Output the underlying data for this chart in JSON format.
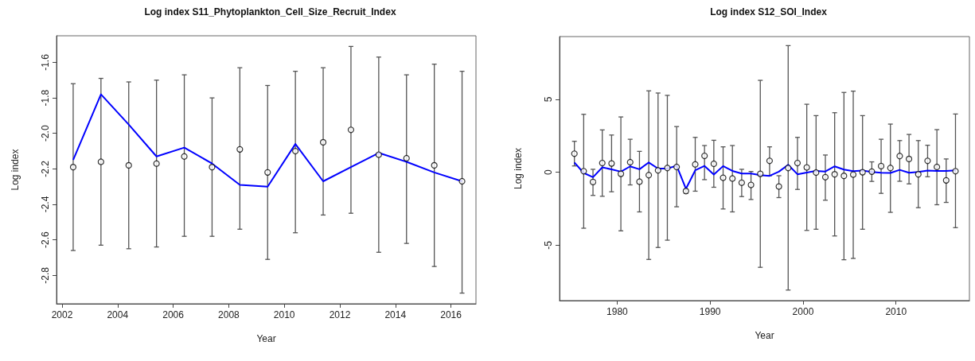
{
  "chart_data": [
    {
      "type": "scatter",
      "title": "Log index S11_Phytoplankton_Cell_Size_Recruit_Index",
      "xlabel": "Year",
      "ylabel": "Log index",
      "xlim": [
        2001.8,
        2016.9
      ],
      "ylim": [
        -2.96,
        -1.45
      ],
      "xticks": [
        2002,
        2004,
        2006,
        2008,
        2010,
        2012,
        2014,
        2016
      ],
      "yticks": [
        {
          "value": -2.8,
          "label": "-2.8"
        },
        {
          "value": -2.6,
          "label": "-2.6"
        },
        {
          "value": -2.4,
          "label": "-2.4"
        },
        {
          "value": -2.2,
          "label": "-2.2"
        },
        {
          "value": -2,
          "label": "-2.0"
        },
        {
          "value": -1.8,
          "label": "-1.8"
        },
        {
          "value": -1.6,
          "label": "-1.6"
        }
      ],
      "series": [
        {
          "type": "scatter",
          "marker": "circle",
          "color": "#000000",
          "x": [
            2002.4,
            2003.4,
            2004.4,
            2005.4,
            2006.4,
            2007.4,
            2008.4,
            2009.4,
            2010.4,
            2011.4,
            2012.4,
            2013.4,
            2014.4,
            2015.4,
            2016.4
          ],
          "values": [
            -2.19,
            -2.16,
            -2.18,
            -2.17,
            -2.13,
            -2.19,
            -2.09,
            -2.22,
            -2.1,
            -2.05,
            -1.98,
            -2.12,
            -2.14,
            -2.18,
            -2.27
          ],
          "errors": [
            [
              -2.66,
              -1.72
            ],
            [
              -2.63,
              -1.69
            ],
            [
              -2.65,
              -1.71
            ],
            [
              -2.64,
              -1.7
            ],
            [
              -2.58,
              -1.67
            ],
            [
              -2.58,
              -1.8
            ],
            [
              -2.54,
              -1.63
            ],
            [
              -2.71,
              -1.73
            ],
            [
              -2.56,
              -1.65
            ],
            [
              -2.46,
              -1.63
            ],
            [
              -2.45,
              -1.51
            ],
            [
              -2.67,
              -1.57
            ],
            [
              -2.62,
              -1.67
            ],
            [
              -2.75,
              -1.61
            ],
            [
              -2.9,
              -1.65
            ]
          ]
        },
        {
          "type": "line",
          "marker": "none",
          "color": "#0000ff",
          "x": [
            2002.4,
            2003.4,
            2004.4,
            2005.4,
            2006.4,
            2007.4,
            2008.4,
            2009.4,
            2010.4,
            2011.4,
            2012.4,
            2013.4,
            2014.4,
            2015.4,
            2016.4
          ],
          "values": [
            -2.15,
            -1.78,
            -1.95,
            -2.13,
            -2.08,
            -2.17,
            -2.29,
            -2.3,
            -2.06,
            -2.27,
            -2.19,
            -2.11,
            -2.16,
            -2.22,
            -2.27
          ]
        }
      ]
    },
    {
      "type": "scatter",
      "title": "Log index S12_SOI_Index",
      "xlabel": "Year",
      "ylabel": "Log index",
      "xlim": [
        1973.8,
        2017.9
      ],
      "ylim": [
        -8.8,
        9.3
      ],
      "xticks": [
        1980,
        1990,
        2000,
        2010
      ],
      "yticks": [
        -5,
        0,
        5
      ],
      "series": [
        {
          "type": "scatter",
          "marker": "circle",
          "color": "#000000",
          "x": [
            1975.4,
            1976.4,
            1977.4,
            1978.4,
            1979.4,
            1980.4,
            1981.4,
            1982.4,
            1983.4,
            1984.4,
            1985.4,
            1986.4,
            1987.4,
            1988.4,
            1989.4,
            1990.4,
            1991.4,
            1992.4,
            1993.4,
            1994.4,
            1995.4,
            1996.4,
            1997.4,
            1998.4,
            1999.4,
            2000.4,
            2001.4,
            2002.4,
            2003.4,
            2004.4,
            2005.4,
            2006.4,
            2007.4,
            2008.4,
            2009.4,
            2010.4,
            2011.4,
            2012.4,
            2013.4,
            2014.4,
            2015.4,
            2016.4
          ],
          "values": [
            1.27,
            0.07,
            -0.67,
            0.63,
            0.6,
            -0.11,
            0.69,
            -0.65,
            -0.2,
            0.13,
            0.29,
            0.36,
            -1.29,
            0.54,
            1.12,
            0.58,
            -0.38,
            -0.43,
            -0.72,
            -0.87,
            -0.11,
            0.78,
            -0.98,
            0.29,
            0.63,
            0.33,
            -0.02,
            -0.34,
            -0.14,
            -0.25,
            -0.16,
            0,
            0.04,
            0.42,
            0.29,
            1.11,
            0.91,
            -0.14,
            0.78,
            0.36,
            -0.56,
            0.07
          ],
          "errors": [
            [
              0.43,
              2.12
            ],
            [
              -3.84,
              3.97
            ],
            [
              -1.59,
              0.2
            ],
            [
              -1.65,
              2.9
            ],
            [
              -1.34,
              2.55
            ],
            [
              -4.02,
              3.79
            ],
            [
              -0.87,
              2.26
            ],
            [
              -2.72,
              1.43
            ],
            [
              -5.98,
              5.58
            ],
            [
              -5.16,
              5.43
            ],
            [
              -4.66,
              5.27
            ],
            [
              -2.37,
              3.13
            ],
            [
              -1.45,
              -1.16
            ],
            [
              -1.3,
              2.39
            ],
            [
              -0.51,
              1.83
            ],
            [
              -1.03,
              2.19
            ],
            [
              -2.52,
              1.74
            ],
            [
              -2.72,
              1.83
            ],
            [
              -1.67,
              0.2
            ],
            [
              -1.87,
              0.05
            ],
            [
              -6.52,
              6.3
            ],
            [
              -0.24,
              1.74
            ],
            [
              -1.74,
              -0.24
            ],
            [
              -8.08,
              8.68
            ],
            [
              -1.18,
              2.39
            ],
            [
              -3.99,
              4.66
            ],
            [
              -3.91,
              3.88
            ],
            [
              -1.92,
              1.18
            ],
            [
              -4.37,
              4.08
            ],
            [
              -6,
              5.47
            ],
            [
              -5.91,
              5.56
            ],
            [
              -3.91,
              3.88
            ],
            [
              -0.63,
              0.71
            ],
            [
              -1.45,
              2.26
            ],
            [
              -2.75,
              3.3
            ],
            [
              -0.62,
              2.17
            ],
            [
              -0.8,
              2.59
            ],
            [
              -2.43,
              2.17
            ],
            [
              -0.31,
              1.85
            ],
            [
              -2.23,
              2.92
            ],
            [
              -2.07,
              0.91
            ],
            [
              -3.8,
              3.99
            ]
          ]
        },
        {
          "type": "line",
          "marker": "none",
          "color": "#0000ff",
          "x": [
            1975.4,
            1976.4,
            1977.4,
            1978.4,
            1979.4,
            1980.4,
            1981.4,
            1982.4,
            1983.4,
            1984.4,
            1985.4,
            1986.4,
            1987.4,
            1988.4,
            1989.4,
            1990.4,
            1991.4,
            1992.4,
            1993.4,
            1994.4,
            1995.4,
            1996.4,
            1997.4,
            1998.4,
            1999.4,
            2000.4,
            2001.4,
            2002.4,
            2003.4,
            2004.4,
            2005.4,
            2006.4,
            2007.4,
            2008.4,
            2009.4,
            2010.4,
            2011.4,
            2012.4,
            2013.4,
            2014.4,
            2015.4,
            2016.4
          ],
          "values": [
            0.67,
            -0.05,
            -0.34,
            0.33,
            0.2,
            0.04,
            0.4,
            0.2,
            0.67,
            0.25,
            0.25,
            0.45,
            -1.14,
            0.13,
            0.43,
            -0.16,
            0.42,
            0.09,
            -0.09,
            -0.09,
            -0.2,
            -0.25,
            0.04,
            0.51,
            -0.14,
            -0.02,
            0.09,
            0.05,
            0.4,
            0.18,
            0.07,
            0.11,
            0.02,
            -0.04,
            -0.05,
            0.16,
            -0.04,
            0.02,
            0.11,
            0.09,
            0.09,
            0.13
          ]
        }
      ]
    }
  ]
}
